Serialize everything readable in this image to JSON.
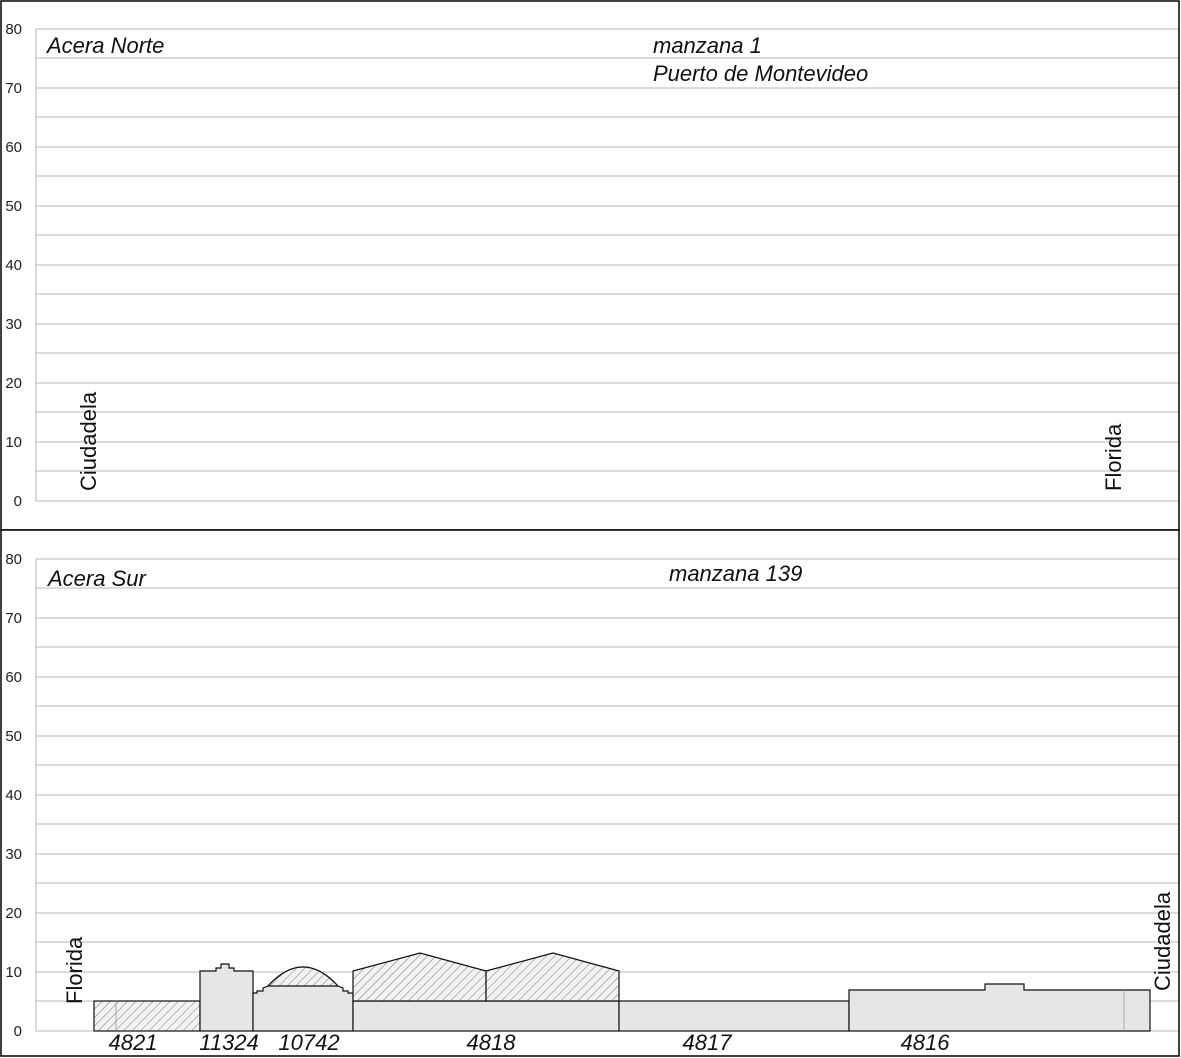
{
  "colors": {
    "grid": "#b8b8b8",
    "frame": "#000000",
    "building_fill": "#e6e6e6",
    "hatch": "#7a7a7a"
  },
  "panels": [
    {
      "title": "Acera Norte",
      "block_label": "manzana 1",
      "block_sublabel": "Puerto de Montevideo",
      "street_left": "Ciudadela",
      "street_right": "Florida",
      "y_ticks": [
        "80",
        "70",
        "60",
        "50",
        "40",
        "30",
        "20",
        "10",
        "0"
      ],
      "lots": []
    },
    {
      "title": "Acera Sur",
      "block_label": "manzana 139",
      "street_left": "Florida",
      "street_right": "Ciudadela",
      "y_ticks": [
        "80",
        "70",
        "60",
        "50",
        "40",
        "30",
        "20",
        "10",
        "0"
      ],
      "lots": [
        "4821",
        "11324",
        "10742",
        "4818",
        "4817",
        "4816"
      ]
    }
  ]
}
